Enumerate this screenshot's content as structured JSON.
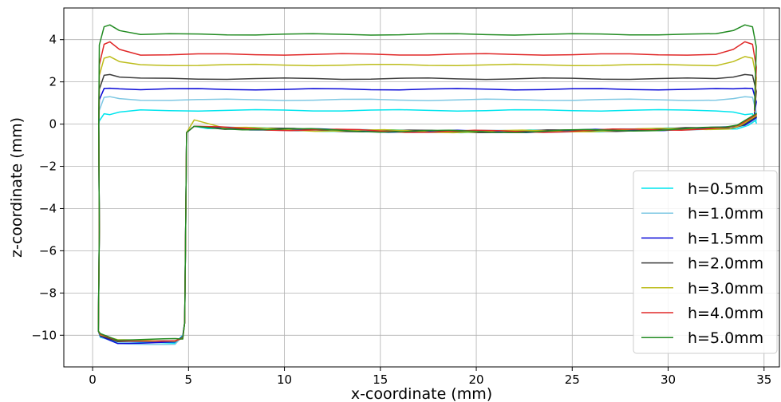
{
  "chart_data": {
    "type": "line",
    "title": "",
    "xlabel": "x-coordinate (mm)",
    "ylabel": "z-coordinate (mm)",
    "xlim": [
      -1.5,
      35.8
    ],
    "ylim": [
      -11.5,
      5.5
    ],
    "xticks": [
      0,
      5,
      10,
      15,
      20,
      25,
      30,
      35
    ],
    "yticks": [
      -10,
      -8,
      -6,
      -4,
      -2,
      0,
      2,
      4
    ],
    "grid": true,
    "legend_position": "lower-right",
    "series": [
      {
        "name": "h=0.5mm",
        "color": "#00e5ee",
        "top_level": 0.65,
        "end_peak": 0.45,
        "bottom_level": -10.35
      },
      {
        "name": "h=1.0mm",
        "color": "#7ec8e3",
        "top_level": 1.15,
        "end_peak": 1.3,
        "bottom_level": -10.4
      },
      {
        "name": "h=1.5mm",
        "color": "#0a0ad8",
        "top_level": 1.65,
        "end_peak": 1.7,
        "bottom_level": -10.35
      },
      {
        "name": "h=2.0mm",
        "color": "#3d3d3d",
        "top_level": 2.15,
        "end_peak": 2.35,
        "bottom_level": -10.3
      },
      {
        "name": "h=3.0mm",
        "color": "#bdbd1c",
        "top_level": 2.8,
        "end_peak": 3.2,
        "bottom_level": -10.25
      },
      {
        "name": "h=4.0mm",
        "color": "#e02828",
        "top_level": 3.3,
        "end_peak": 3.9,
        "bottom_level": -10.25
      },
      {
        "name": "h=5.0mm",
        "color": "#228b22",
        "top_level": 4.25,
        "end_peak": 4.7,
        "bottom_level": -10.2
      }
    ],
    "common_outline": {
      "left_wall_x": 0.3,
      "inner_wall_x": 4.9,
      "right_end_x": 34.6,
      "lower_surface_level": -0.15
    }
  }
}
